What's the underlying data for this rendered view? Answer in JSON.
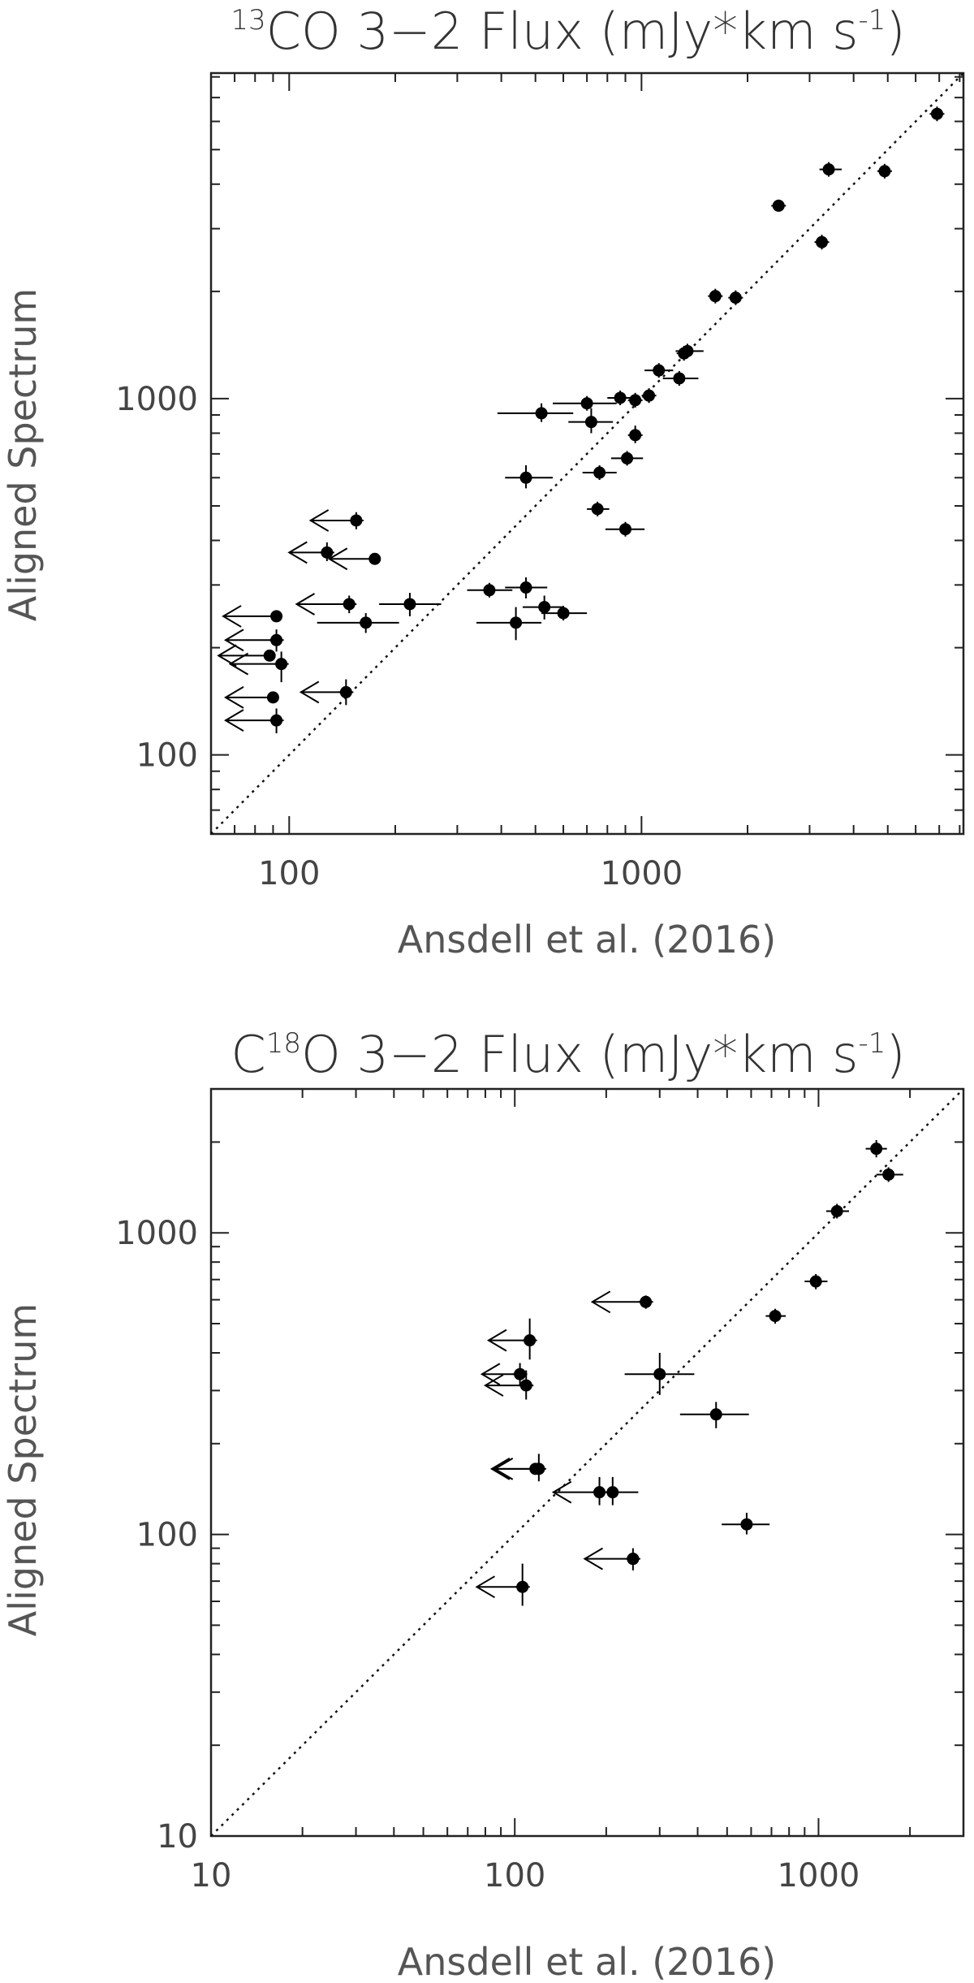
{
  "chart_data": [
    {
      "id": "panel-13co",
      "type": "scatter",
      "title_prefix": "13",
      "title": "CO 3−2 Flux (mJy*km s",
      "title_sup": "-1",
      "title_suffix": ")",
      "xlabel": "Ansdell et al. (2016)",
      "ylabel": "Aligned Spectrum",
      "xscale": "log",
      "yscale": "log",
      "xlim": [
        60,
        8200
      ],
      "ylim": [
        60,
        8200
      ],
      "xticks": [
        {
          "value": 100,
          "label": "100"
        },
        {
          "value": 1000,
          "label": "1000"
        }
      ],
      "yticks": [
        {
          "value": 100,
          "label": "100"
        },
        {
          "value": 1000,
          "label": "1000"
        }
      ],
      "one_to_one_line": true,
      "detections": [
        {
          "x": 6900,
          "y": 6300
        },
        {
          "x": 3400,
          "y": 4400,
          "xlo": 3200,
          "xhi": 3700
        },
        {
          "x": 4900,
          "y": 4350
        },
        {
          "x": 2450,
          "y": 3480,
          "ylo": 3350,
          "yhi": 3620
        },
        {
          "x": 3250,
          "y": 2750
        },
        {
          "x": 1620,
          "y": 1940
        },
        {
          "x": 1850,
          "y": 1920
        },
        {
          "x": 1350,
          "y": 1360,
          "xlo": 1250,
          "xhi": 1500
        },
        {
          "x": 1320,
          "y": 1340
        },
        {
          "x": 1120,
          "y": 1200,
          "xlo": 1020,
          "xhi": 1230
        },
        {
          "x": 1280,
          "y": 1140,
          "xlo": 1150,
          "xhi": 1450
        },
        {
          "x": 1050,
          "y": 1020
        },
        {
          "x": 960,
          "y": 990
        },
        {
          "x": 870,
          "y": 1005,
          "xlo": 800,
          "xhi": 950
        },
        {
          "x": 700,
          "y": 970,
          "xlo": 560,
          "xhi": 850
        },
        {
          "x": 520,
          "y": 910,
          "xlo": 390,
          "xhi": 640,
          "ylo": 860,
          "yhi": 970
        },
        {
          "x": 720,
          "y": 860,
          "xlo": 620,
          "xhi": 830,
          "ylo": 800,
          "yhi": 940
        },
        {
          "x": 960,
          "y": 790,
          "ylo": 750,
          "yhi": 840
        },
        {
          "x": 910,
          "y": 680,
          "xlo": 820,
          "xhi": 1010
        },
        {
          "x": 760,
          "y": 620,
          "xlo": 680,
          "xhi": 850
        },
        {
          "x": 470,
          "y": 600,
          "xlo": 410,
          "xhi": 560,
          "ylo": 560,
          "yhi": 650
        },
        {
          "x": 750,
          "y": 490,
          "xlo": 700,
          "xhi": 810
        },
        {
          "x": 900,
          "y": 430,
          "xlo": 790,
          "xhi": 1020
        },
        {
          "x": 370,
          "y": 290,
          "xlo": 320,
          "xhi": 430
        },
        {
          "x": 470,
          "y": 295,
          "xlo": 410,
          "xhi": 540,
          "ylo": 275,
          "yhi": 315
        },
        {
          "x": 530,
          "y": 260,
          "xlo": 460,
          "xhi": 600,
          "ylo": 240,
          "yhi": 280
        },
        {
          "x": 600,
          "y": 250,
          "xlo": 520,
          "xhi": 700
        },
        {
          "x": 440,
          "y": 235,
          "xlo": 340,
          "xhi": 520,
          "ylo": 210,
          "yhi": 260
        },
        {
          "x": 220,
          "y": 265,
          "xlo": 180,
          "xhi": 270,
          "ylo": 245,
          "yhi": 285
        },
        {
          "x": 165,
          "y": 235,
          "xlo": 120,
          "xhi": 205,
          "ylo": 220,
          "yhi": 250
        }
      ],
      "upper_limits": [
        {
          "x": 155,
          "y": 455,
          "xarrow": 115,
          "ylo": 430,
          "yhi": 480
        },
        {
          "x": 128,
          "y": 370,
          "xarrow": 100,
          "ylo": 350,
          "yhi": 395
        },
        {
          "x": 175,
          "y": 355,
          "xarrow": 130
        },
        {
          "x": 148,
          "y": 265,
          "xarrow": 105,
          "ylo": 250,
          "yhi": 280
        },
        {
          "x": 92,
          "y": 245,
          "xarrow": 65
        },
        {
          "x": 92,
          "y": 210,
          "xarrow": 66,
          "ylo": 195,
          "yhi": 225
        },
        {
          "x": 88,
          "y": 190,
          "xarrow": 63
        },
        {
          "x": 95,
          "y": 180,
          "xarrow": 68,
          "ylo": 160,
          "yhi": 195
        },
        {
          "x": 145,
          "y": 150,
          "xarrow": 108,
          "ylo": 138,
          "yhi": 163
        },
        {
          "x": 90,
          "y": 145,
          "xarrow": 66
        },
        {
          "x": 92,
          "y": 125,
          "xarrow": 66,
          "ylo": 115,
          "yhi": 135
        }
      ]
    },
    {
      "id": "panel-c18o",
      "type": "scatter",
      "title_prefix": "C",
      "title_sup_mid": "18",
      "title": "O 3−2 Flux (mJy*km s",
      "title_sup": "-1",
      "title_suffix": ")",
      "xlabel": "Ansdell et al. (2016)",
      "ylabel": "Aligned Spectrum",
      "xscale": "log",
      "yscale": "log",
      "xlim": [
        10,
        3000
      ],
      "ylim": [
        10,
        3000
      ],
      "xticks": [
        {
          "value": 10,
          "label": "10"
        },
        {
          "value": 100,
          "label": "100"
        },
        {
          "value": 1000,
          "label": "1000"
        }
      ],
      "yticks": [
        {
          "value": 10,
          "label": "10"
        },
        {
          "value": 100,
          "label": "100"
        },
        {
          "value": 1000,
          "label": "1000"
        }
      ],
      "one_to_one_line": true,
      "detections": [
        {
          "x": 1550,
          "y": 1900,
          "xlo": 1430,
          "xhi": 1680,
          "ylo": 1780,
          "yhi": 2030
        },
        {
          "x": 1700,
          "y": 1560,
          "xlo": 1550,
          "xhi": 1900
        },
        {
          "x": 1150,
          "y": 1180,
          "xlo": 1060,
          "xhi": 1260
        },
        {
          "x": 980,
          "y": 690,
          "xlo": 900,
          "xhi": 1070,
          "ylo": 650,
          "yhi": 730
        },
        {
          "x": 720,
          "y": 530,
          "xlo": 670,
          "xhi": 780,
          "ylo": 500,
          "yhi": 560
        },
        {
          "x": 300,
          "y": 340,
          "xlo": 230,
          "xhi": 390,
          "ylo": 290,
          "yhi": 400
        },
        {
          "x": 460,
          "y": 250,
          "xlo": 350,
          "xhi": 590,
          "ylo": 225,
          "yhi": 275
        },
        {
          "x": 580,
          "y": 108,
          "xlo": 480,
          "xhi": 690,
          "ylo": 100,
          "yhi": 118
        },
        {
          "x": 245,
          "y": 83,
          "ylo": 76,
          "yhi": 90
        }
      ],
      "upper_limits": [
        {
          "x": 270,
          "y": 590,
          "xarrow": 180,
          "ylo": 560,
          "yhi": 620
        },
        {
          "x": 112,
          "y": 440,
          "xarrow": 82,
          "ylo": 380,
          "yhi": 520
        },
        {
          "x": 104,
          "y": 340,
          "xarrow": 78,
          "ylo": 310,
          "yhi": 370
        },
        {
          "x": 109,
          "y": 312,
          "xarrow": 80,
          "ylo": 280,
          "yhi": 350
        },
        {
          "x": 120,
          "y": 165,
          "xarrow": 86,
          "ylo": 150,
          "yhi": 185
        },
        {
          "x": 117,
          "y": 165,
          "xarrow": 84
        },
        {
          "x": 190,
          "y": 138,
          "xarrow": 134,
          "ylo": 125,
          "yhi": 155
        },
        {
          "x": 210,
          "y": 138,
          "xlo": 185,
          "xhi": 255,
          "ylo": 125,
          "yhi": 155
        },
        {
          "x": 245,
          "y": 83,
          "xarrow": 170
        },
        {
          "x": 106,
          "y": 67,
          "xarrow": 75,
          "ylo": 58,
          "yhi": 80
        }
      ]
    }
  ]
}
